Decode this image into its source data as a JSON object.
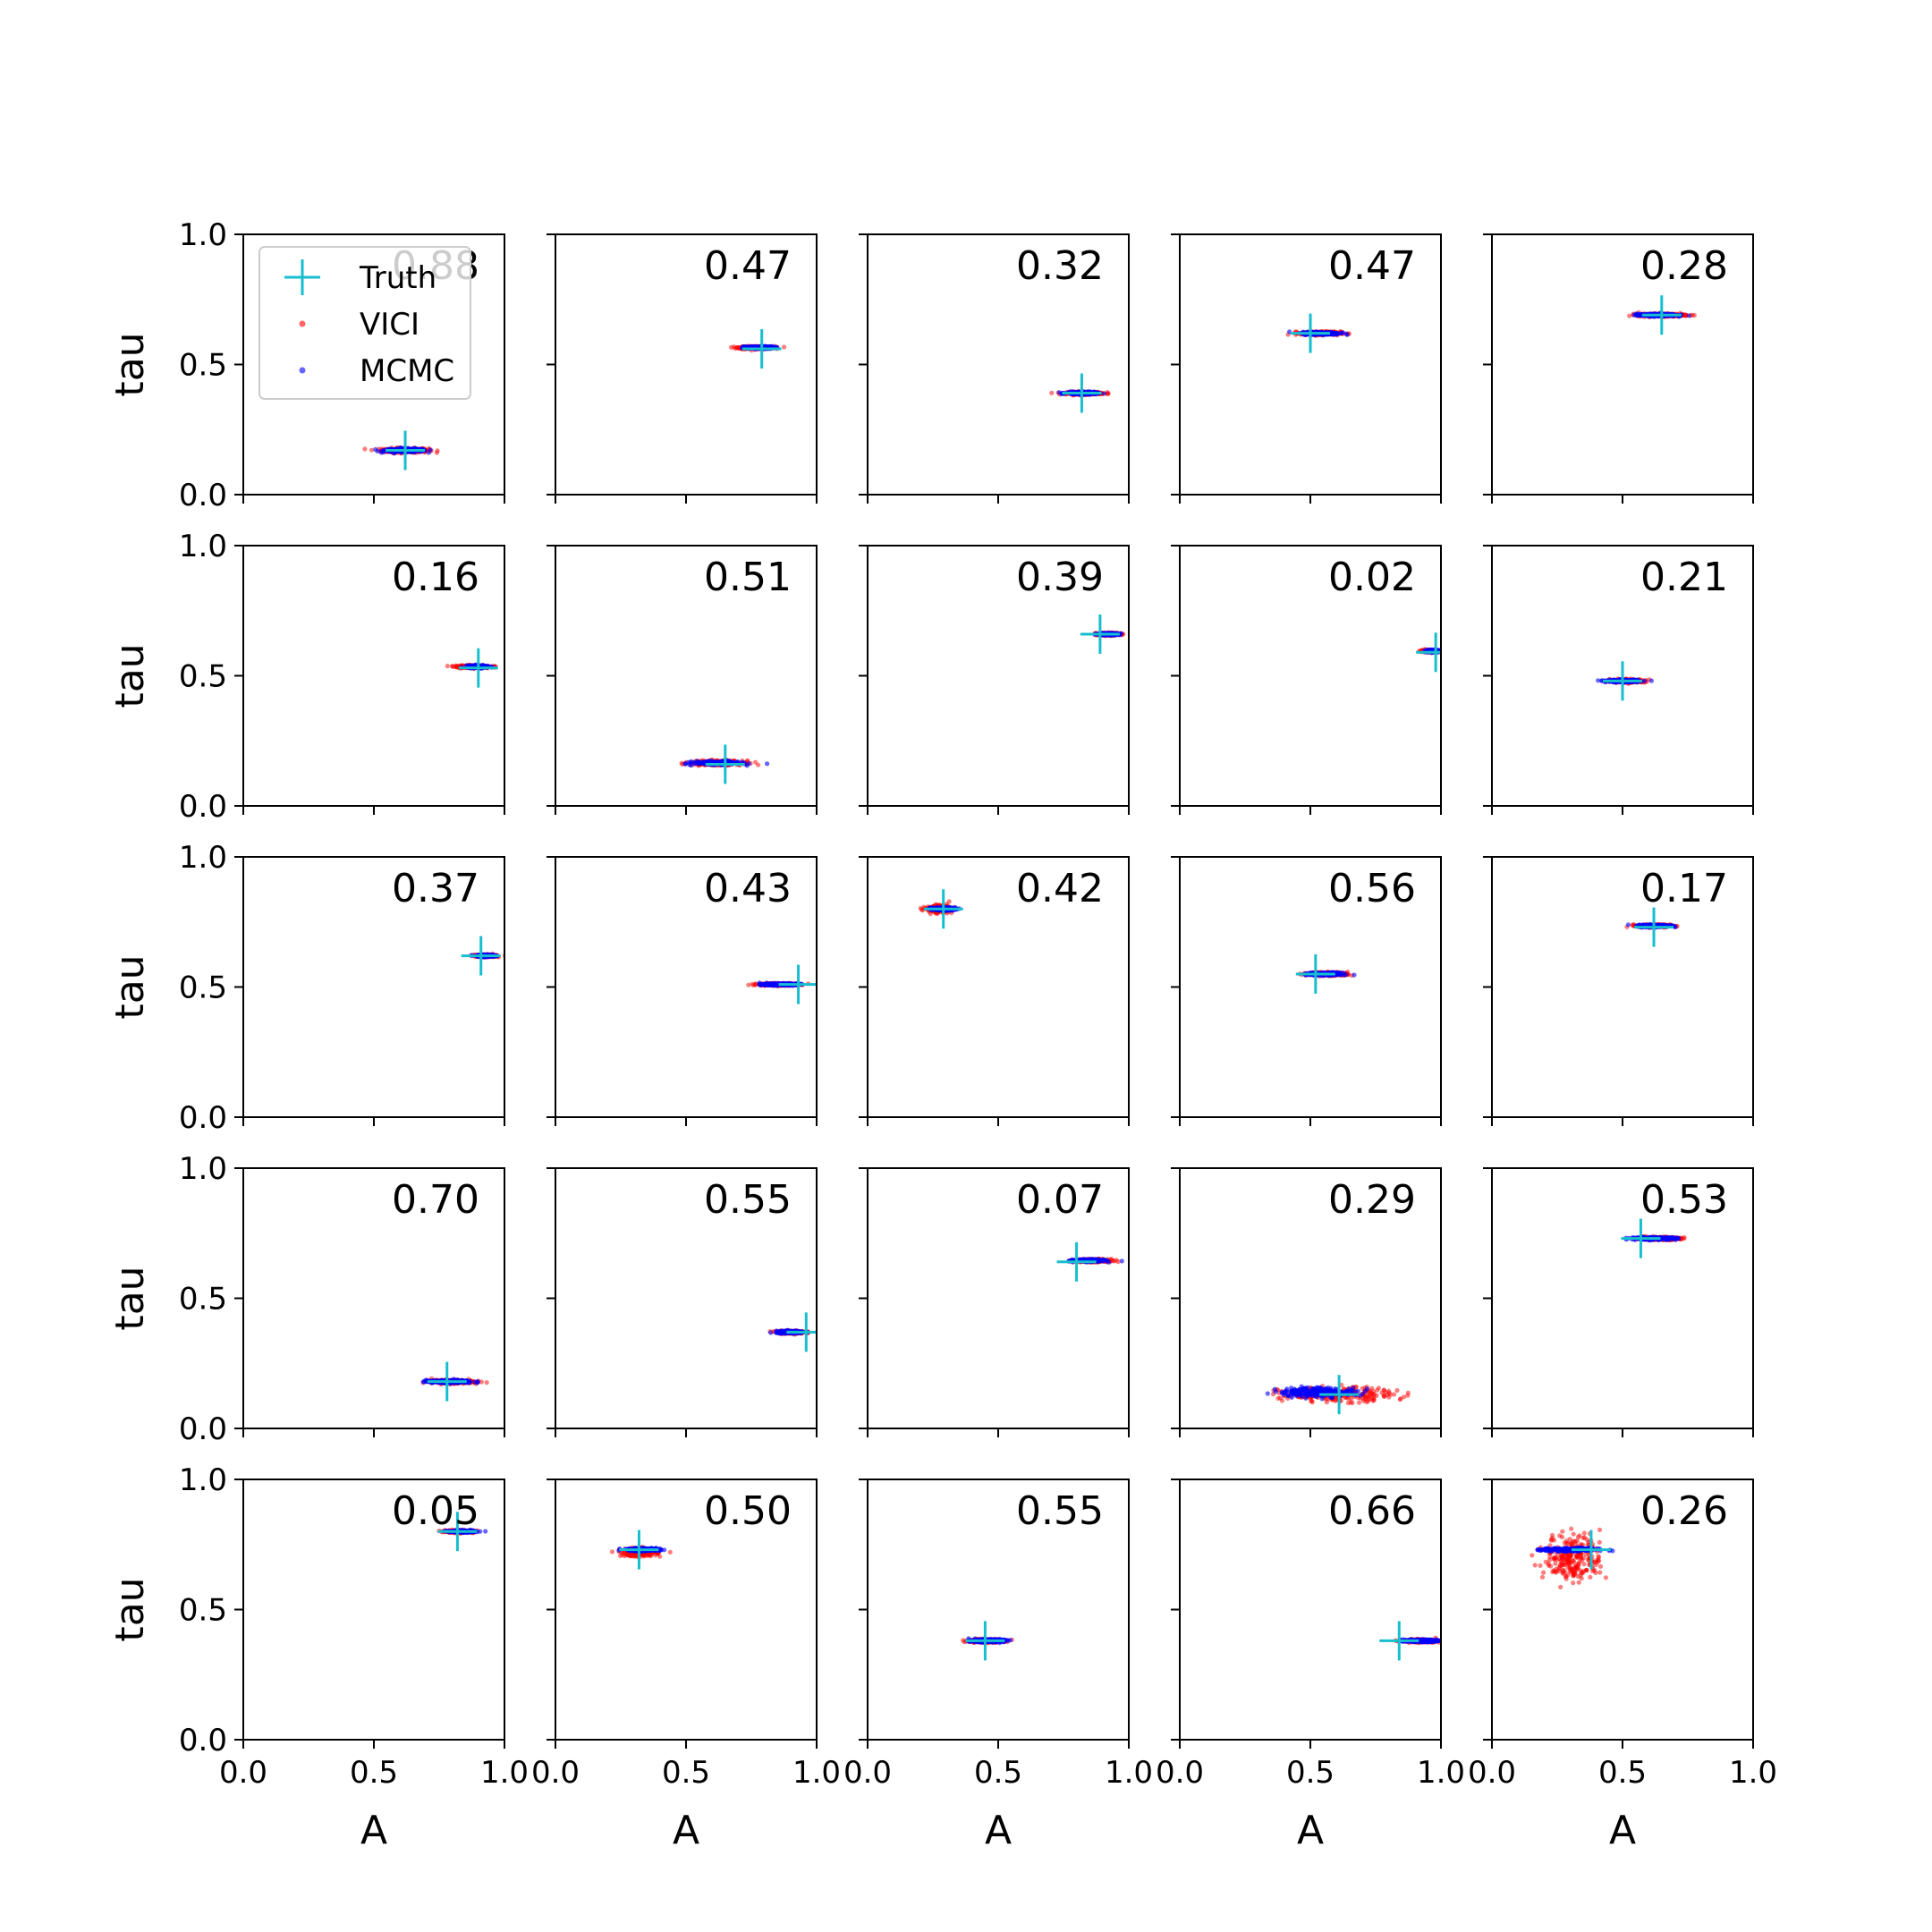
{
  "figure": {
    "xlabel": "A",
    "ylabel": "tau",
    "xticks": [
      "0.0",
      "0.5",
      "1.0"
    ],
    "yticks": [
      "0.0",
      "0.5",
      "1.0"
    ],
    "xlim": [
      0,
      1
    ],
    "ylim": [
      0,
      1
    ],
    "legend": {
      "placement": "upper-left",
      "entries": [
        {
          "label": "Truth",
          "marker": "plus",
          "color": "#17becf"
        },
        {
          "label": "VICI",
          "marker": "dot",
          "color": "#ff0000"
        },
        {
          "label": "MCMC",
          "marker": "dot",
          "color": "#0000ff"
        }
      ]
    }
  },
  "colors": {
    "truth": "#17becf",
    "vici": "#ff0000",
    "mcmc": "#0000ff",
    "axes": "#000000"
  },
  "chart_data": {
    "type": "scatter",
    "grid": false,
    "layout": "5x5 panel grid",
    "panels": [
      {
        "label": "0.88",
        "truth": [
          0.62,
          0.17
        ],
        "vici": {
          "center": [
            0.62,
            0.17
          ],
          "spread": [
            0.2,
            0.02
          ]
        },
        "mcmc": {
          "center": [
            0.62,
            0.17
          ],
          "spread": [
            0.18,
            0.015
          ]
        }
      },
      {
        "label": "0.47",
        "truth": [
          0.79,
          0.56
        ],
        "vici": {
          "center": [
            0.77,
            0.565
          ],
          "spread": [
            0.15,
            0.012
          ]
        },
        "mcmc": {
          "center": [
            0.78,
            0.565
          ],
          "spread": [
            0.13,
            0.01
          ]
        }
      },
      {
        "label": "0.32",
        "truth": [
          0.82,
          0.39
        ],
        "vici": {
          "center": [
            0.83,
            0.39
          ],
          "spread": [
            0.15,
            0.012
          ]
        },
        "mcmc": {
          "center": [
            0.82,
            0.39
          ],
          "spread": [
            0.13,
            0.01
          ]
        }
      },
      {
        "label": "0.47",
        "truth": [
          0.5,
          0.62
        ],
        "vici": {
          "center": [
            0.54,
            0.62
          ],
          "spread": [
            0.17,
            0.015
          ]
        },
        "mcmc": {
          "center": [
            0.54,
            0.62
          ],
          "spread": [
            0.16,
            0.012
          ]
        }
      },
      {
        "label": "0.28",
        "truth": [
          0.65,
          0.69
        ],
        "vici": {
          "center": [
            0.65,
            0.69
          ],
          "spread": [
            0.2,
            0.012
          ]
        },
        "mcmc": {
          "center": [
            0.63,
            0.69
          ],
          "spread": [
            0.17,
            0.01
          ]
        }
      },
      {
        "label": "0.16",
        "truth": [
          0.9,
          0.53
        ],
        "vici": {
          "center": [
            0.88,
            0.535
          ],
          "spread": [
            0.15,
            0.012
          ]
        },
        "mcmc": {
          "center": [
            0.9,
            0.535
          ],
          "spread": [
            0.1,
            0.01
          ]
        }
      },
      {
        "label": "0.51",
        "truth": [
          0.65,
          0.16
        ],
        "vici": {
          "center": [
            0.62,
            0.165
          ],
          "spread": [
            0.22,
            0.02
          ]
        },
        "mcmc": {
          "center": [
            0.62,
            0.165
          ],
          "spread": [
            0.2,
            0.015
          ]
        }
      },
      {
        "label": "0.39",
        "truth": [
          0.89,
          0.66
        ],
        "vici": {
          "center": [
            0.92,
            0.66
          ],
          "spread": [
            0.1,
            0.01
          ]
        },
        "mcmc": {
          "center": [
            0.92,
            0.66
          ],
          "spread": [
            0.09,
            0.008
          ]
        }
      },
      {
        "label": "0.02",
        "truth": [
          0.98,
          0.59
        ],
        "vici": {
          "center": [
            0.96,
            0.595
          ],
          "spread": [
            0.08,
            0.01
          ]
        },
        "mcmc": {
          "center": [
            0.97,
            0.595
          ],
          "spread": [
            0.06,
            0.008
          ]
        }
      },
      {
        "label": "0.21",
        "truth": [
          0.5,
          0.48
        ],
        "vici": {
          "center": [
            0.52,
            0.48
          ],
          "spread": [
            0.15,
            0.014
          ]
        },
        "mcmc": {
          "center": [
            0.5,
            0.48
          ],
          "spread": [
            0.14,
            0.01
          ]
        }
      },
      {
        "label": "0.37",
        "truth": [
          0.91,
          0.62
        ],
        "vici": {
          "center": [
            0.93,
            0.62
          ],
          "spread": [
            0.09,
            0.01
          ]
        },
        "mcmc": {
          "center": [
            0.93,
            0.62
          ],
          "spread": [
            0.08,
            0.008
          ]
        }
      },
      {
        "label": "0.43",
        "truth": [
          0.93,
          0.51
        ],
        "vici": {
          "center": [
            0.85,
            0.51
          ],
          "spread": [
            0.16,
            0.01
          ]
        },
        "mcmc": {
          "center": [
            0.86,
            0.51
          ],
          "spread": [
            0.15,
            0.008
          ]
        }
      },
      {
        "label": "0.42",
        "truth": [
          0.29,
          0.8
        ],
        "vici": {
          "center": [
            0.27,
            0.8
          ],
          "spread": [
            0.1,
            0.03
          ]
        },
        "mcmc": {
          "center": [
            0.29,
            0.8
          ],
          "spread": [
            0.1,
            0.012
          ]
        }
      },
      {
        "label": "0.56",
        "truth": [
          0.52,
          0.55
        ],
        "vici": {
          "center": [
            0.57,
            0.55
          ],
          "spread": [
            0.17,
            0.015
          ]
        },
        "mcmc": {
          "center": [
            0.56,
            0.55
          ],
          "spread": [
            0.16,
            0.012
          ]
        }
      },
      {
        "label": "0.17",
        "truth": [
          0.62,
          0.73
        ],
        "vici": {
          "center": [
            0.62,
            0.735
          ],
          "spread": [
            0.14,
            0.012
          ]
        },
        "mcmc": {
          "center": [
            0.62,
            0.735
          ],
          "spread": [
            0.13,
            0.01
          ]
        }
      },
      {
        "label": "0.70",
        "truth": [
          0.78,
          0.18
        ],
        "vici": {
          "center": [
            0.8,
            0.18
          ],
          "spread": [
            0.18,
            0.015
          ]
        },
        "mcmc": {
          "center": [
            0.79,
            0.18
          ],
          "spread": [
            0.2,
            0.012
          ]
        }
      },
      {
        "label": "0.55",
        "truth": [
          0.96,
          0.37
        ],
        "vici": {
          "center": [
            0.9,
            0.37
          ],
          "spread": [
            0.12,
            0.012
          ]
        },
        "mcmc": {
          "center": [
            0.9,
            0.37
          ],
          "spread": [
            0.12,
            0.01
          ]
        }
      },
      {
        "label": "0.07",
        "truth": [
          0.8,
          0.64
        ],
        "vici": {
          "center": [
            0.86,
            0.645
          ],
          "spread": [
            0.14,
            0.012
          ]
        },
        "mcmc": {
          "center": [
            0.85,
            0.645
          ],
          "spread": [
            0.13,
            0.01
          ]
        }
      },
      {
        "label": "0.29",
        "truth": [
          0.61,
          0.13
        ],
        "vici": {
          "center": [
            0.6,
            0.13
          ],
          "spread": [
            0.48,
            0.06
          ]
        },
        "mcmc": {
          "center": [
            0.53,
            0.14
          ],
          "spread": [
            0.34,
            0.04
          ]
        }
      },
      {
        "label": "0.53",
        "truth": [
          0.57,
          0.73
        ],
        "vici": {
          "center": [
            0.64,
            0.73
          ],
          "spread": [
            0.18,
            0.012
          ]
        },
        "mcmc": {
          "center": [
            0.62,
            0.73
          ],
          "spread": [
            0.2,
            0.01
          ]
        }
      },
      {
        "label": "0.05",
        "truth": [
          0.82,
          0.8
        ],
        "vici": {
          "center": [
            0.83,
            0.8
          ],
          "spread": [
            0.12,
            0.01
          ]
        },
        "mcmc": {
          "center": [
            0.84,
            0.8
          ],
          "spread": [
            0.11,
            0.008
          ]
        }
      },
      {
        "label": "0.50",
        "truth": [
          0.32,
          0.73
        ],
        "vici": {
          "center": [
            0.32,
            0.72
          ],
          "spread": [
            0.15,
            0.035
          ]
        },
        "mcmc": {
          "center": [
            0.34,
            0.73
          ],
          "spread": [
            0.14,
            0.012
          ]
        }
      },
      {
        "label": "0.55",
        "truth": [
          0.45,
          0.38
        ],
        "vici": {
          "center": [
            0.45,
            0.38
          ],
          "spread": [
            0.14,
            0.015
          ]
        },
        "mcmc": {
          "center": [
            0.46,
            0.38
          ],
          "spread": [
            0.14,
            0.012
          ]
        }
      },
      {
        "label": "0.66",
        "truth": [
          0.84,
          0.38
        ],
        "vici": {
          "center": [
            0.92,
            0.38
          ],
          "spread": [
            0.14,
            0.012
          ]
        },
        "mcmc": {
          "center": [
            0.92,
            0.38
          ],
          "spread": [
            0.14,
            0.01
          ]
        }
      },
      {
        "label": "0.26",
        "truth": [
          0.38,
          0.73
        ],
        "vici": {
          "center": [
            0.31,
            0.7
          ],
          "spread": [
            0.24,
            0.2
          ]
        },
        "mcmc": {
          "center": [
            0.3,
            0.73
          ],
          "spread": [
            0.24,
            0.015
          ]
        }
      }
    ]
  }
}
